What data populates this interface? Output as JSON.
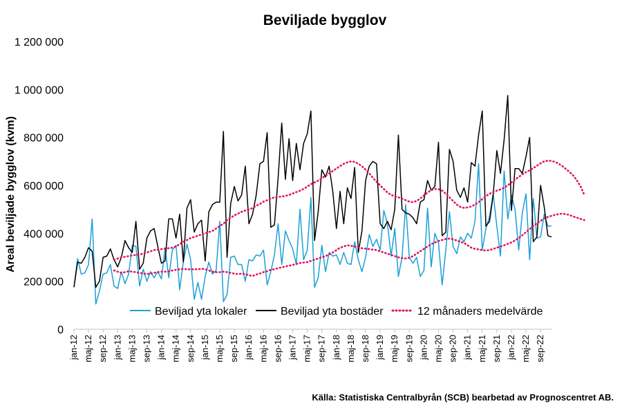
{
  "chart_data": {
    "type": "line",
    "title": "Beviljade bygglov",
    "xlabel": "",
    "ylabel": "Areal beviljade bygglov (kvm)",
    "ylim": [
      0,
      1200000
    ],
    "yticks": [
      0,
      200000,
      400000,
      600000,
      800000,
      1000000,
      1200000
    ],
    "ytick_labels": [
      "0",
      "200 000",
      "400 000",
      "600 000",
      "800 000",
      "1 000 000",
      "1 200 000"
    ],
    "grid": false,
    "legend_position": "bottom",
    "x_tick_labels": [
      "jan-12",
      "maj-12",
      "sep-12",
      "jan-13",
      "maj-13",
      "sep-13",
      "jan-14",
      "maj-14",
      "sep-14",
      "jan-15",
      "maj-15",
      "sep-15",
      "jan-16",
      "maj-16",
      "sep-16",
      "jan-17",
      "maj-17",
      "sep-17",
      "jan-18",
      "maj-18",
      "sep-18",
      "jan-19",
      "maj-19",
      "sep-19",
      "jan-20",
      "maj-20",
      "sep-20",
      "jan-21",
      "maj-21",
      "sep-21",
      "jan-22",
      "maj-22",
      "sep-22"
    ],
    "x_start": "2012-01",
    "x_end": "2022-12",
    "series": [
      {
        "name": "Beviljad yta lokaler",
        "color": "#1a9fd6",
        "style": "solid",
        "values": [
          175000,
          295000,
          230000,
          235000,
          270000,
          460000,
          105000,
          160000,
          230000,
          235000,
          270000,
          180000,
          170000,
          240000,
          190000,
          230000,
          350000,
          345000,
          180000,
          250000,
          200000,
          240000,
          215000,
          240000,
          210000,
          340000,
          215000,
          330000,
          350000,
          165000,
          280000,
          355000,
          290000,
          125000,
          195000,
          125000,
          220000,
          280000,
          230000,
          245000,
          450000,
          115000,
          145000,
          300000,
          305000,
          270000,
          270000,
          200000,
          290000,
          285000,
          310000,
          305000,
          330000,
          185000,
          240000,
          310000,
          440000,
          270000,
          410000,
          370000,
          335000,
          270000,
          500000,
          290000,
          330000,
          550000,
          175000,
          215000,
          350000,
          240000,
          320000,
          305000,
          310000,
          270000,
          320000,
          275000,
          270000,
          365000,
          290000,
          240000,
          300000,
          395000,
          345000,
          375000,
          330000,
          495000,
          440000,
          305000,
          420000,
          220000,
          300000,
          520000,
          300000,
          275000,
          300000,
          220000,
          245000,
          505000,
          260000,
          400000,
          360000,
          185000,
          330000,
          490000,
          345000,
          315000,
          385000,
          365000,
          400000,
          380000,
          450000,
          690000,
          330000,
          420000,
          470000,
          565000,
          430000,
          305000,
          660000,
          460000,
          560000,
          500000,
          330000,
          485000,
          565000,
          290000,
          545000,
          380000,
          385000,
          480000,
          430000,
          430000
        ]
      },
      {
        "name": "Beviljad yta bostäder",
        "color": "#000000",
        "style": "solid",
        "values": [
          175000,
          280000,
          275000,
          300000,
          340000,
          325000,
          175000,
          200000,
          300000,
          305000,
          335000,
          290000,
          260000,
          300000,
          370000,
          340000,
          320000,
          450000,
          250000,
          275000,
          380000,
          410000,
          420000,
          345000,
          275000,
          285000,
          460000,
          460000,
          380000,
          480000,
          280000,
          505000,
          540000,
          405000,
          440000,
          455000,
          285000,
          490000,
          520000,
          530000,
          530000,
          825000,
          300000,
          525000,
          595000,
          535000,
          560000,
          680000,
          440000,
          480000,
          560000,
          690000,
          700000,
          820000,
          425000,
          435000,
          630000,
          860000,
          625000,
          795000,
          620000,
          775000,
          665000,
          775000,
          815000,
          910000,
          370000,
          490000,
          665000,
          635000,
          680000,
          575000,
          420000,
          575000,
          440000,
          590000,
          545000,
          675000,
          320000,
          410000,
          620000,
          680000,
          700000,
          690000,
          440000,
          420000,
          450000,
          415000,
          500000,
          810000,
          500000,
          485000,
          480000,
          465000,
          440000,
          530000,
          540000,
          620000,
          580000,
          595000,
          780000,
          390000,
          405000,
          750000,
          700000,
          580000,
          550000,
          590000,
          530000,
          695000,
          680000,
          810000,
          910000,
          430000,
          450000,
          560000,
          745000,
          650000,
          790000,
          975000,
          495000,
          670000,
          670000,
          650000,
          720000,
          800000,
          365000,
          385000,
          600000,
          510000,
          390000,
          385000
        ]
      },
      {
        "name": "12 månaders medelvärde",
        "color": "#e0115f",
        "style": "dotted",
        "segments": [
          {
            "x_start": "2012-12",
            "values": [
              245000,
              240000,
              235000,
              238000,
              242000,
              240000,
              238000,
              235000,
              232000,
              230000,
              232000,
              235000,
              238000,
              240000,
              240000,
              242000,
              245000,
              248000,
              250000,
              252000,
              250000,
              250000,
              250000,
              250000,
              252000,
              250000,
              245000,
              240000,
              238000,
              238000,
              240000,
              238000,
              235000,
              232000,
              230000,
              232000,
              230000,
              225000,
              222000,
              228000,
              232000,
              238000,
              242000,
              248000,
              250000,
              255000,
              258000,
              262000,
              265000,
              268000,
              272000,
              276000,
              278000,
              280000,
              285000,
              290000,
              295000,
              300000,
              305000,
              312000,
              320000,
              330000,
              340000,
              345000,
              350000,
              348000,
              345000,
              340000,
              338000,
              336000,
              334000,
              332000,
              330000,
              325000,
              320000,
              315000,
              310000,
              305000,
              300000,
              297000,
              295000,
              298000,
              305000,
              315000,
              325000,
              335000,
              345000,
              355000,
              362000,
              368000,
              372000,
              376000,
              378000,
              375000,
              370000,
              365000,
              360000,
              350000,
              340000,
              335000,
              333000,
              330000,
              328000,
              330000,
              335000,
              340000,
              345000,
              350000,
              356000,
              362000,
              370000,
              380000,
              392000,
              405000,
              418000,
              430000,
              442000,
              452000,
              462000,
              468000,
              473000,
              477000,
              480000,
              482000,
              480000,
              476000,
              470000,
              465000,
              460000,
              455000
            ]
          },
          {
            "x_start": "2012-12",
            "values": [
              290000,
              295000,
              300000,
              302000,
              305000,
              308000,
              310000,
              312000,
              315000,
              320000,
              325000,
              330000,
              332000,
              334000,
              336000,
              338000,
              340000,
              345000,
              355000,
              365000,
              372000,
              380000,
              385000,
              390000,
              395000,
              400000,
              405000,
              410000,
              420000,
              430000,
              440000,
              455000,
              465000,
              475000,
              482000,
              490000,
              495000,
              500000,
              505000,
              515000,
              522000,
              532000,
              538000,
              545000,
              550000,
              552000,
              553000,
              556000,
              560000,
              566000,
              572000,
              578000,
              585000,
              595000,
              605000,
              612000,
              620000,
              630000,
              640000,
              650000,
              660000,
              670000,
              680000,
              690000,
              696000,
              700000,
              698000,
              690000,
              680000,
              665000,
              650000,
              632000,
              615000,
              600000,
              585000,
              570000,
              560000,
              555000,
              550000,
              545000,
              538000,
              532000,
              530000,
              535000,
              545000,
              558000,
              570000,
              580000,
              585000,
              584000,
              578000,
              565000,
              550000,
              535000,
              520000,
              510000,
              506000,
              508000,
              512000,
              520000,
              530000,
              542000,
              555000,
              565000,
              572000,
              578000,
              583000,
              590000,
              600000,
              612000,
              624000,
              635000,
              646000,
              655000,
              663000,
              672000,
              682000,
              692000,
              700000,
              703000,
              702000,
              698000,
              690000,
              680000,
              668000,
              655000,
              640000,
              620000,
              595000,
              560000
            ]
          }
        ]
      }
    ],
    "source": "Källa: Statistiska Centralbyrån (SCB) bearbetad av Prognoscentret AB."
  }
}
